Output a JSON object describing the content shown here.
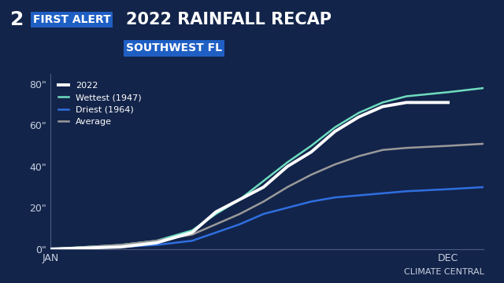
{
  "header": {
    "logo_number": "2",
    "logo_text": "FIRST ALERT"
  },
  "chart_data": {
    "type": "line",
    "title": "2022 RAINFALL RECAP",
    "subtitle": "SOUTHWEST FL",
    "source": "CLIMATE CENTRAL",
    "x": [
      1,
      60,
      90,
      120,
      140,
      160,
      180,
      200,
      220,
      240,
      260,
      280,
      300,
      335,
      365
    ],
    "xlim": [
      1,
      365
    ],
    "xticks": [
      {
        "value": 1,
        "label": "JAN"
      },
      {
        "value": 335,
        "label": "DEC"
      }
    ],
    "ylim": [
      0,
      85
    ],
    "yticks": [
      {
        "value": 0,
        "label": "0\""
      },
      {
        "value": 20,
        "label": "20\""
      },
      {
        "value": 40,
        "label": "40\""
      },
      {
        "value": 60,
        "label": "60\""
      },
      {
        "value": 80,
        "label": "80\""
      }
    ],
    "grid": false,
    "legend": "upper left",
    "series": [
      {
        "name": "2022",
        "color": "#ffffff",
        "line_style": "solid",
        "values": [
          0,
          1,
          3,
          8,
          18,
          24,
          30,
          40,
          47,
          57,
          64,
          69,
          71,
          71,
          null
        ]
      },
      {
        "name": "Wettest (1947)",
        "color": "#6fdcc0",
        "line_style": "solid",
        "values": [
          0,
          2,
          4,
          9,
          17,
          24,
          33,
          42,
          50,
          59,
          66,
          71,
          74,
          76,
          78
        ]
      },
      {
        "name": "Driest (1964)",
        "color": "#2f6fe0",
        "line_style": "solid",
        "values": [
          0,
          1,
          2,
          4,
          8,
          12,
          17,
          20,
          23,
          25,
          26,
          27,
          28,
          29,
          30
        ]
      },
      {
        "name": "Average",
        "color": "#9a9a9a",
        "line_style": "solid",
        "values": [
          0,
          2,
          4,
          7,
          12,
          17,
          23,
          30,
          36,
          41,
          45,
          48,
          49,
          50,
          51
        ]
      }
    ]
  }
}
